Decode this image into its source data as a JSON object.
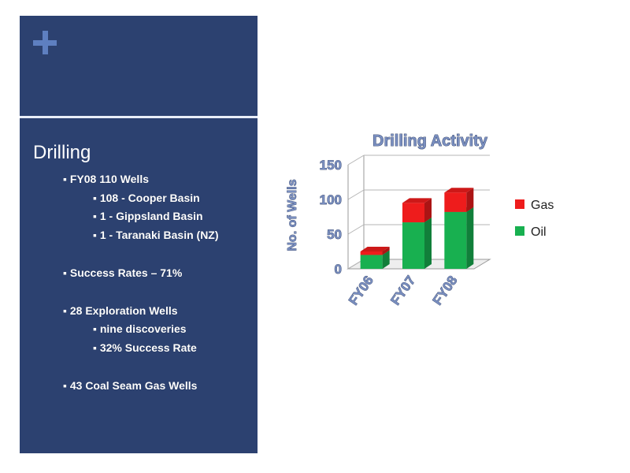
{
  "slide": {
    "heading": "Drilling",
    "bullets": [
      "▪ FY08 110 Wells",
      "▪ 108 - Cooper Basin",
      "▪  1 - Gippsland Basin",
      "▪  1 - Taranaki Basin (NZ)",
      "▪ Success Rates – 71%",
      "▪ 28 Exploration Wells",
      "▪  nine discoveries",
      "▪ 32% Success Rate",
      "▪ 43 Coal Seam Gas Wells"
    ]
  },
  "colors": {
    "panel": "#2c4170",
    "accent": "#5e7fc0",
    "title_text": "#7a8fc0",
    "oil": "#18b050",
    "gas": "#ee1c1c"
  },
  "chart_data": {
    "type": "bar",
    "stacked": true,
    "three_d": true,
    "title": "Drilling Activity",
    "ylabel": "No. of Wells",
    "xlabel": "",
    "categories": [
      "FY06",
      "FY07",
      "FY08"
    ],
    "series": [
      {
        "name": "Oil",
        "color": "#18b050",
        "values": [
          20,
          67,
          82
        ]
      },
      {
        "name": "Gas",
        "color": "#ee1c1c",
        "values": [
          5,
          28,
          28
        ]
      }
    ],
    "ylim": [
      0,
      150
    ],
    "yticks": [
      "0",
      "50",
      "100",
      "150"
    ],
    "grid": true,
    "legend": "right"
  }
}
